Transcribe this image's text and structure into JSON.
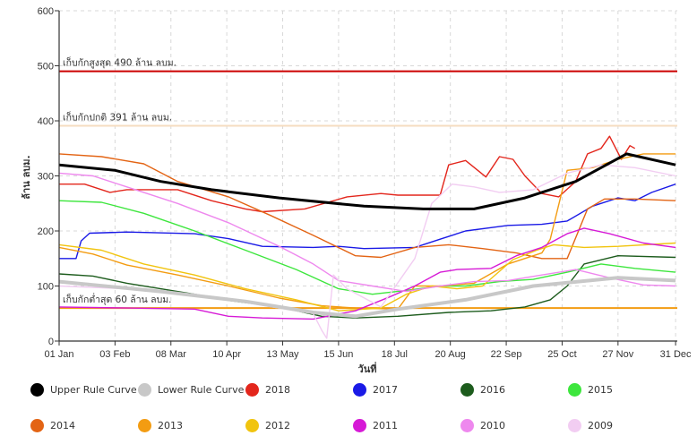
{
  "chart_data": {
    "type": "line",
    "ylabel": "ล้าน ลบม.",
    "xlabel": "วันที่",
    "ylim": [
      0,
      600
    ],
    "yticks": [
      0,
      100,
      200,
      300,
      400,
      500,
      600
    ],
    "xlim": [
      0,
      365
    ],
    "xticks": [
      {
        "label": "01 Jan",
        "day": 0
      },
      {
        "label": "03 Feb",
        "day": 33
      },
      {
        "label": "08 Mar",
        "day": 66
      },
      {
        "label": "10 Apr",
        "day": 99
      },
      {
        "label": "13 May",
        "day": 132
      },
      {
        "label": "15 Jun",
        "day": 165
      },
      {
        "label": "18 Jul",
        "day": 198
      },
      {
        "label": "20 Aug",
        "day": 231
      },
      {
        "label": "22 Sep",
        "day": 264
      },
      {
        "label": "25 Oct",
        "day": 297
      },
      {
        "label": "27 Nov",
        "day": 330
      },
      {
        "label": "31 Dec",
        "day": 364
      }
    ],
    "grid": true,
    "legend_position": "bottom",
    "reference_lines": [
      {
        "label": "เก็บกักสูงสุด 490 ล้าน ลบม.",
        "value": 490,
        "color": "#cc0000"
      },
      {
        "label": "เก็บกักปกติ 391 ล้าน ลบม.",
        "value": 391,
        "color": "#f5dcc0"
      },
      {
        "label": "เก็บกักต่ำสุด 60 ล้าน ลบม.",
        "value": 60,
        "color": "#f39c12"
      }
    ],
    "series": [
      {
        "name": "Upper Rule Curve",
        "color": "#000000",
        "points": [
          [
            0,
            320
          ],
          [
            33,
            310
          ],
          [
            60,
            290
          ],
          [
            90,
            275
          ],
          [
            130,
            260
          ],
          [
            180,
            245
          ],
          [
            215,
            240
          ],
          [
            245,
            240
          ],
          [
            275,
            260
          ],
          [
            305,
            290
          ],
          [
            335,
            340
          ],
          [
            364,
            320
          ]
        ]
      },
      {
        "name": "Lower Rule Curve",
        "color": "#c8c8c8",
        "points": [
          [
            0,
            108
          ],
          [
            60,
            90
          ],
          [
            110,
            72
          ],
          [
            150,
            52
          ],
          [
            175,
            45
          ],
          [
            200,
            58
          ],
          [
            240,
            75
          ],
          [
            280,
            100
          ],
          [
            330,
            115
          ],
          [
            364,
            110
          ]
        ]
      },
      {
        "name": "2018",
        "color": "#e3261c",
        "points": [
          [
            0,
            285
          ],
          [
            15,
            285
          ],
          [
            30,
            270
          ],
          [
            40,
            275
          ],
          [
            70,
            275
          ],
          [
            90,
            255
          ],
          [
            110,
            240
          ],
          [
            120,
            235
          ],
          [
            145,
            240
          ],
          [
            170,
            262
          ],
          [
            190,
            268
          ],
          [
            200,
            265
          ],
          [
            225,
            265
          ],
          [
            230,
            320
          ],
          [
            240,
            328
          ],
          [
            252,
            298
          ],
          [
            260,
            335
          ],
          [
            268,
            330
          ],
          [
            275,
            300
          ],
          [
            285,
            268
          ],
          [
            295,
            262
          ],
          [
            305,
            290
          ],
          [
            312,
            340
          ],
          [
            320,
            350
          ],
          [
            325,
            372
          ],
          [
            332,
            330
          ],
          [
            337,
            355
          ],
          [
            340,
            350
          ]
        ]
      },
      {
        "name": "2017",
        "color": "#1a1ae6",
        "points": [
          [
            0,
            150
          ],
          [
            10,
            150
          ],
          [
            13,
            182
          ],
          [
            18,
            196
          ],
          [
            40,
            198
          ],
          [
            80,
            195
          ],
          [
            100,
            186
          ],
          [
            120,
            172
          ],
          [
            150,
            170
          ],
          [
            165,
            172
          ],
          [
            180,
            168
          ],
          [
            210,
            170
          ],
          [
            225,
            185
          ],
          [
            240,
            200
          ],
          [
            265,
            210
          ],
          [
            285,
            212
          ],
          [
            300,
            218
          ],
          [
            315,
            245
          ],
          [
            330,
            260
          ],
          [
            340,
            255
          ],
          [
            350,
            270
          ],
          [
            364,
            285
          ]
        ]
      },
      {
        "name": "2016",
        "color": "#1d5c1d",
        "points": [
          [
            0,
            122
          ],
          [
            20,
            118
          ],
          [
            40,
            105
          ],
          [
            60,
            95
          ],
          [
            80,
            85
          ],
          [
            100,
            74
          ],
          [
            130,
            62
          ],
          [
            155,
            45
          ],
          [
            175,
            42
          ],
          [
            200,
            45
          ],
          [
            230,
            52
          ],
          [
            255,
            55
          ],
          [
            275,
            62
          ],
          [
            290,
            75
          ],
          [
            300,
            100
          ],
          [
            310,
            140
          ],
          [
            330,
            155
          ],
          [
            364,
            152
          ]
        ]
      },
      {
        "name": "2015",
        "color": "#3de63d",
        "points": [
          [
            0,
            255
          ],
          [
            25,
            252
          ],
          [
            50,
            232
          ],
          [
            80,
            200
          ],
          [
            110,
            165
          ],
          [
            140,
            130
          ],
          [
            165,
            95
          ],
          [
            185,
            85
          ],
          [
            205,
            92
          ],
          [
            225,
            100
          ],
          [
            240,
            100
          ],
          [
            260,
            108
          ],
          [
            280,
            112
          ],
          [
            300,
            125
          ],
          [
            320,
            140
          ],
          [
            340,
            132
          ],
          [
            364,
            125
          ]
        ]
      },
      {
        "name": "2014",
        "color": "#e36414",
        "points": [
          [
            0,
            340
          ],
          [
            25,
            335
          ],
          [
            50,
            322
          ],
          [
            70,
            290
          ],
          [
            100,
            262
          ],
          [
            125,
            228
          ],
          [
            150,
            192
          ],
          [
            175,
            155
          ],
          [
            190,
            152
          ],
          [
            210,
            170
          ],
          [
            230,
            175
          ],
          [
            250,
            168
          ],
          [
            270,
            160
          ],
          [
            285,
            150
          ],
          [
            300,
            150
          ],
          [
            312,
            240
          ],
          [
            322,
            258
          ],
          [
            340,
            258
          ],
          [
            364,
            255
          ]
        ]
      },
      {
        "name": "2013",
        "color": "#f39c12",
        "points": [
          [
            0,
            170
          ],
          [
            20,
            158
          ],
          [
            40,
            138
          ],
          [
            70,
            120
          ],
          [
            100,
            100
          ],
          [
            130,
            78
          ],
          [
            155,
            64
          ],
          [
            175,
            60
          ],
          [
            200,
            58
          ],
          [
            210,
            100
          ],
          [
            225,
            100
          ],
          [
            245,
            105
          ],
          [
            265,
            140
          ],
          [
            285,
            160
          ],
          [
            290,
            185
          ],
          [
            300,
            310
          ],
          [
            315,
            315
          ],
          [
            330,
            330
          ],
          [
            345,
            340
          ],
          [
            364,
            340
          ]
        ]
      },
      {
        "name": "2012",
        "color": "#f1c40f",
        "points": [
          [
            0,
            175
          ],
          [
            25,
            165
          ],
          [
            50,
            140
          ],
          [
            80,
            120
          ],
          [
            110,
            95
          ],
          [
            140,
            75
          ],
          [
            165,
            55
          ],
          [
            190,
            60
          ],
          [
            205,
            85
          ],
          [
            220,
            100
          ],
          [
            235,
            95
          ],
          [
            250,
            100
          ],
          [
            268,
            148
          ],
          [
            282,
            165
          ],
          [
            292,
            175
          ],
          [
            310,
            170
          ],
          [
            330,
            172
          ],
          [
            364,
            178
          ]
        ]
      },
      {
        "name": "2011",
        "color": "#d61ad6",
        "points": [
          [
            0,
            62
          ],
          [
            40,
            60
          ],
          [
            80,
            58
          ],
          [
            100,
            45
          ],
          [
            120,
            42
          ],
          [
            150,
            40
          ],
          [
            175,
            55
          ],
          [
            195,
            80
          ],
          [
            210,
            100
          ],
          [
            225,
            125
          ],
          [
            235,
            130
          ],
          [
            255,
            132
          ],
          [
            270,
            155
          ],
          [
            285,
            170
          ],
          [
            300,
            195
          ],
          [
            310,
            205
          ],
          [
            325,
            195
          ],
          [
            345,
            178
          ],
          [
            364,
            170
          ]
        ]
      },
      {
        "name": "2010",
        "color": "#ee88ee",
        "points": [
          [
            0,
            305
          ],
          [
            20,
            300
          ],
          [
            40,
            280
          ],
          [
            70,
            250
          ],
          [
            100,
            215
          ],
          [
            130,
            172
          ],
          [
            150,
            140
          ],
          [
            165,
            110
          ],
          [
            185,
            100
          ],
          [
            205,
            90
          ],
          [
            225,
            100
          ],
          [
            245,
            108
          ],
          [
            265,
            110
          ],
          [
            285,
            120
          ],
          [
            305,
            130
          ],
          [
            325,
            115
          ],
          [
            345,
            102
          ],
          [
            364,
            100
          ]
        ]
      },
      {
        "name": "2009",
        "color": "#f2cdf2",
        "points": [
          [
            0,
            100
          ],
          [
            40,
            95
          ],
          [
            80,
            85
          ],
          [
            120,
            65
          ],
          [
            150,
            50
          ],
          [
            155,
            20
          ],
          [
            158,
            5
          ],
          [
            162,
            120
          ],
          [
            170,
            95
          ],
          [
            190,
            62
          ],
          [
            210,
            150
          ],
          [
            220,
            250
          ],
          [
            232,
            285
          ],
          [
            245,
            280
          ],
          [
            260,
            270
          ],
          [
            280,
            275
          ],
          [
            300,
            305
          ],
          [
            320,
            320
          ],
          [
            340,
            315
          ],
          [
            364,
            300
          ]
        ]
      }
    ]
  }
}
